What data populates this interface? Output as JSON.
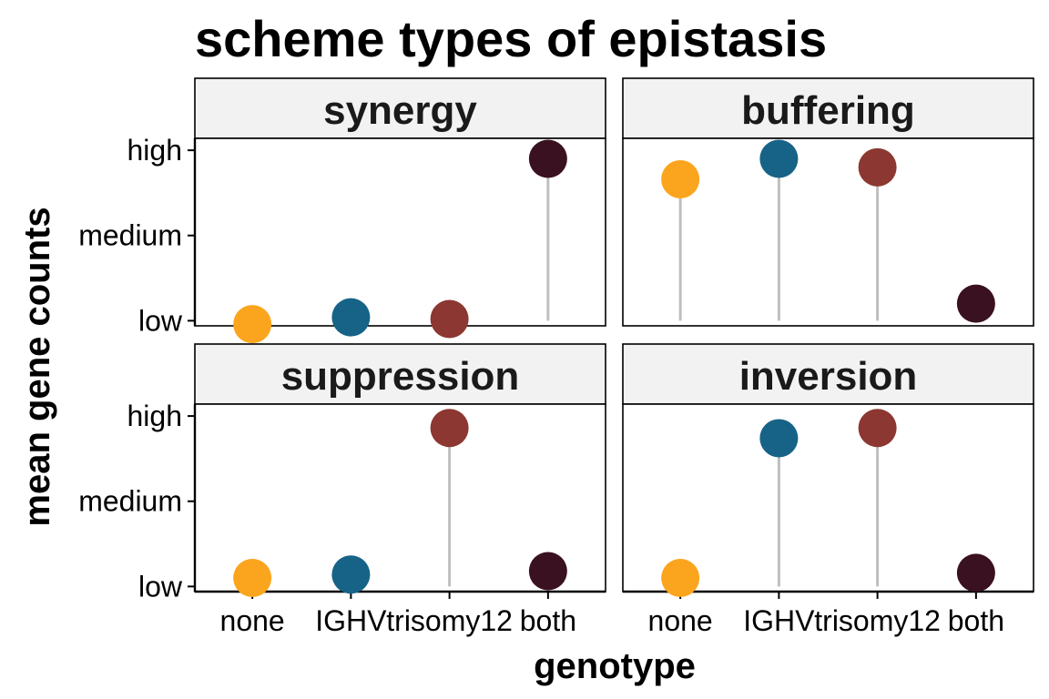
{
  "chart_data": {
    "type": "scatter",
    "title": "scheme types of epistasis",
    "xlabel": "genotype",
    "ylabel": "mean gene counts",
    "categories": [
      "none",
      "IGHV",
      "trisomy12",
      "both"
    ],
    "y_ticks": [
      {
        "label": "low",
        "value": 0
      },
      {
        "label": "medium",
        "value": 0.5
      },
      {
        "label": "high",
        "value": 1
      }
    ],
    "ylim": [
      -0.03,
      1.07
    ],
    "colors": {
      "none": "#FBA51E",
      "IGHV": "#176388",
      "trisomy12": "#8C3731",
      "both": "#3A1121",
      "stem": "#BFBFBF",
      "strip_fill": "#F2F2F2"
    },
    "panels": [
      {
        "name": "synergy",
        "values": [
          -0.02,
          0.02,
          0.01,
          0.95
        ]
      },
      {
        "name": "buffering",
        "values": [
          0.83,
          0.95,
          0.9,
          0.1
        ]
      },
      {
        "name": "suppression",
        "values": [
          0.05,
          0.07,
          0.93,
          0.09
        ]
      },
      {
        "name": "inversion",
        "values": [
          0.05,
          0.87,
          0.93,
          0.08
        ]
      }
    ]
  }
}
